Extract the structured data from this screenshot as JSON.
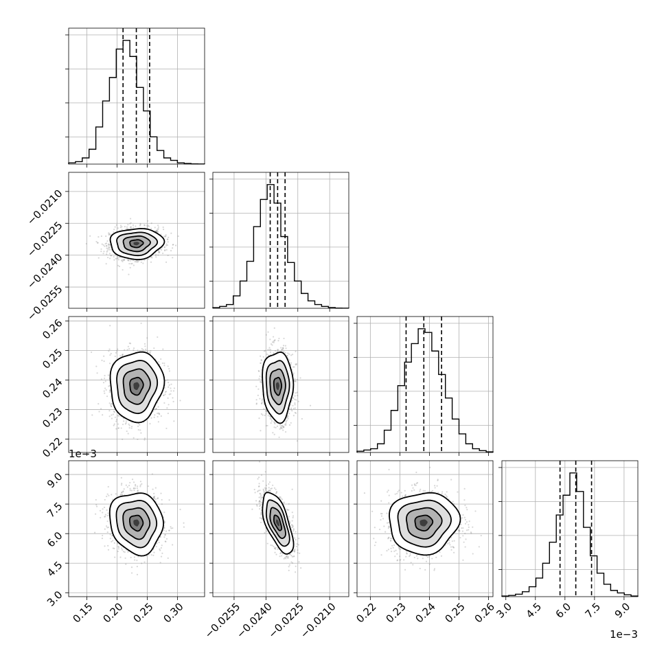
{
  "chart_data": {
    "type": "corner",
    "description_source": "posterior samples shown as 1D histograms on the diagonal and 2D density contours below",
    "quantile_lines": "dashed vertical lines at 16th, 50th and 84th percentiles",
    "grid": true,
    "parameters": [
      {
        "range": [
          0.12,
          0.345
        ],
        "ticks": [
          0.15,
          0.2,
          0.25,
          0.3
        ],
        "tick_labels": [
          "0.15",
          "0.20",
          "0.25",
          "0.30"
        ],
        "offset_label": "",
        "mean": 0.232,
        "sigma": 0.022,
        "quantiles": [
          0.21,
          0.232,
          0.254
        ],
        "hist_counts": [
          1,
          2,
          5,
          12,
          30,
          51,
          70,
          93,
          100,
          87,
          62,
          43,
          22,
          11,
          5,
          3,
          1,
          0.5,
          0.2,
          0.1
        ]
      },
      {
        "range": [
          -0.0265,
          -0.0201
        ],
        "ticks": [
          -0.0255,
          -0.024,
          -0.0225,
          -0.021
        ],
        "tick_labels": [
          "−0.0255",
          "−0.0240",
          "−0.0225",
          "−0.0210"
        ],
        "offset_label": "",
        "mean": -0.02345,
        "sigma": 0.00036,
        "quantiles": [
          -0.0238,
          -0.02345,
          -0.0231
        ],
        "hist_counts": [
          0.5,
          1.5,
          3,
          10,
          22,
          38,
          66,
          88,
          100,
          85,
          58,
          37,
          22,
          12,
          6,
          3,
          1.5,
          0.6,
          0.2,
          0.1
        ]
      },
      {
        "range": [
          0.2155,
          0.2615
        ],
        "ticks": [
          0.22,
          0.23,
          0.24,
          0.25,
          0.26
        ],
        "tick_labels": [
          "0.22",
          "0.23",
          "0.24",
          "0.25",
          "0.26"
        ],
        "offset_label": "",
        "mean": 0.238,
        "sigma": 0.0059,
        "quantiles": [
          0.2321,
          0.2381,
          0.2441
        ],
        "hist_counts": [
          1,
          2,
          3,
          7,
          18,
          34,
          54,
          73,
          88,
          100,
          97,
          82,
          63,
          44,
          27,
          15,
          7,
          3,
          1.5,
          0.5
        ]
      },
      {
        "range": [
          2.8,
          9.7
        ],
        "ticks": [
          3.0,
          4.5,
          6.0,
          7.5,
          9.0
        ],
        "tick_labels": [
          "3.0",
          "4.5",
          "6.0",
          "7.5",
          "9.0"
        ],
        "offset_label": "1e−3",
        "mean": 6.55,
        "sigma": 0.78,
        "quantiles": [
          5.75,
          6.55,
          7.35
        ],
        "hist_counts": [
          0.5,
          1,
          2,
          4,
          8,
          15,
          27,
          44,
          66,
          82,
          100,
          85,
          56,
          33,
          19,
          10,
          5,
          3,
          1.5,
          0.5
        ]
      }
    ],
    "correlations": {
      "1-0": 0.05,
      "2-0": 0.05,
      "2-1": -0.05,
      "3-0": -0.1,
      "3-1": -0.62,
      "3-2": 0.05
    },
    "contour_levels_sigma": [
      0.5,
      1.0,
      1.5,
      2.0
    ],
    "offset_labels": {
      "left_axis_row4": "1e−3",
      "bottom_axis_col4": "1e−3"
    }
  }
}
